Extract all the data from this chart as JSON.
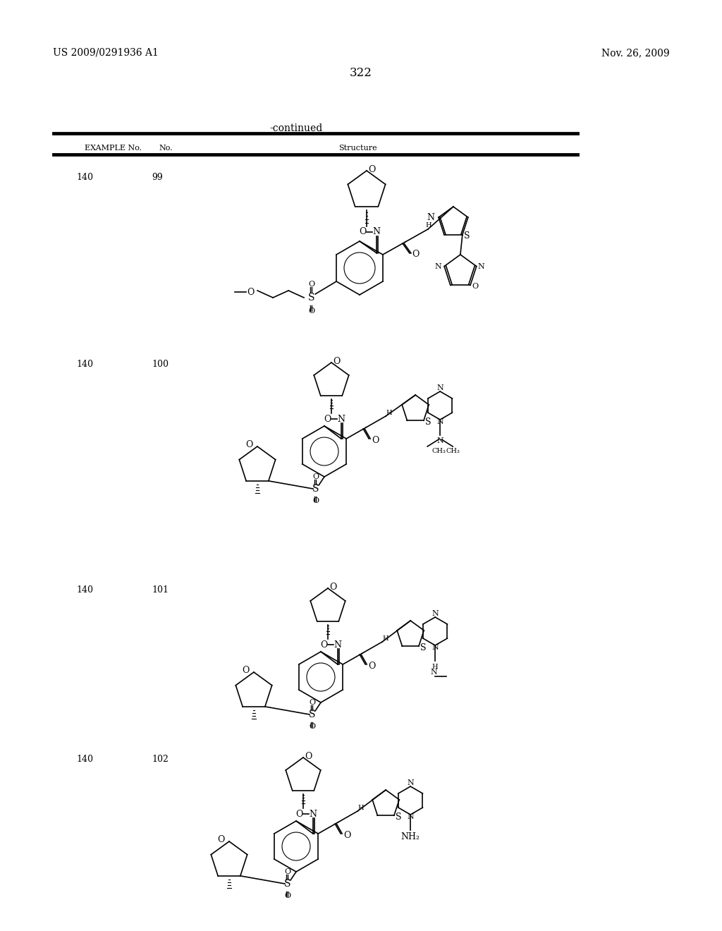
{
  "page_number": "322",
  "header_left": "US 2009/0291936 A1",
  "header_right": "Nov. 26, 2009",
  "continued_text": "-continued",
  "col1_header": "EXAMPLE No.",
  "col2_header": "No.",
  "col3_header": "Structure",
  "rows": [
    {
      "ex": "140",
      "no": "99"
    },
    {
      "ex": "140",
      "no": "100"
    },
    {
      "ex": "140",
      "no": "101"
    },
    {
      "ex": "140",
      "no": "102"
    }
  ],
  "bg_color": "#ffffff",
  "text_color": "#000000",
  "line_color": "#000000"
}
